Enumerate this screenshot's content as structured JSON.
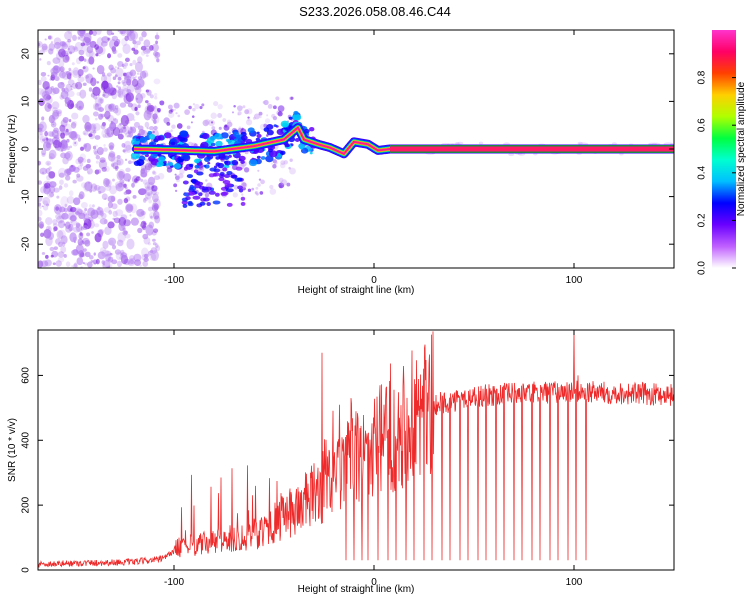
{
  "title": "S233.2026.058.08.46.C44",
  "colors": {
    "snr_line": "#ee2a2a",
    "axis": "#000000",
    "cloud": "#a05ce0"
  },
  "chart_data": [
    {
      "type": "heatmap",
      "title": "S233.2026.058.08.46.C44",
      "xlabel": "Height of straight line (km)",
      "ylabel": "Frequency (Hz)",
      "xlim": [
        -168,
        150
      ],
      "ylim": [
        -25,
        25
      ],
      "xticks": [
        -100,
        0,
        100
      ],
      "xtick_labels": [
        "-100",
        "0",
        "100"
      ],
      "yticks": [
        -20,
        -10,
        0,
        10,
        20
      ],
      "ytick_labels": [
        "-20",
        "-10",
        "0",
        "10",
        "20"
      ],
      "colorbar": {
        "label": "Normalized spectral amplitude",
        "range": [
          0,
          1
        ],
        "ticks": [
          0.0,
          0.2,
          0.4,
          0.6,
          0.8
        ],
        "tick_labels": [
          "0.0",
          "0.2",
          "0.4",
          "0.6",
          "0.8"
        ],
        "colormap": [
          "#ffffff",
          "#c060ff",
          "#6a00ff",
          "#0000ff",
          "#00bfff",
          "#00ffd0",
          "#00ff40",
          "#b0ff00",
          "#ffd000",
          "#ff4000",
          "#ff0066",
          "#ff33cc"
        ]
      },
      "ridge": [
        {
          "x": -120,
          "f": 0.0
        },
        {
          "x": -100,
          "f": -0.2
        },
        {
          "x": -80,
          "f": -0.5
        },
        {
          "x": -60,
          "f": 0.6
        },
        {
          "x": -45,
          "f": 2.0
        },
        {
          "x": -38,
          "f": 4.5
        },
        {
          "x": -35,
          "f": 2.0
        },
        {
          "x": -28,
          "f": 1.0
        },
        {
          "x": -22,
          "f": 0.3
        },
        {
          "x": -15,
          "f": -1.0
        },
        {
          "x": -10,
          "f": 1.5
        },
        {
          "x": -3,
          "f": 1.0
        },
        {
          "x": 2,
          "f": -0.3
        },
        {
          "x": 8,
          "f": 0.0
        },
        {
          "x": 150,
          "f": 0.0
        }
      ]
    },
    {
      "type": "line",
      "xlabel": "Height of straight line (km)",
      "ylabel": "SNR (10 * v/v)",
      "xlim": [
        -168,
        150
      ],
      "ylim": [
        0,
        740
      ],
      "xticks": [
        -100,
        0,
        100
      ],
      "xtick_labels": [
        "-100",
        "0",
        "100"
      ],
      "yticks": [
        0,
        200,
        400,
        600
      ],
      "ytick_labels": [
        "0",
        "200",
        "400",
        "600"
      ],
      "series": [
        {
          "name": "SNR",
          "envelope": [
            {
              "x": -168,
              "y": 18
            },
            {
              "x": -120,
              "y": 25
            },
            {
              "x": -105,
              "y": 35
            },
            {
              "x": -98,
              "y": 70
            },
            {
              "x": -80,
              "y": 85
            },
            {
              "x": -60,
              "y": 110
            },
            {
              "x": -45,
              "y": 160
            },
            {
              "x": -30,
              "y": 230
            },
            {
              "x": -15,
              "y": 310
            },
            {
              "x": 0,
              "y": 380
            },
            {
              "x": 15,
              "y": 460
            },
            {
              "x": 30,
              "y": 510
            },
            {
              "x": 50,
              "y": 535
            },
            {
              "x": 70,
              "y": 545
            },
            {
              "x": 100,
              "y": 550
            },
            {
              "x": 150,
              "y": 540
            }
          ],
          "spikes": [
            {
              "x": -26,
              "y": 670
            },
            {
              "x": -12,
              "y": 430
            },
            {
              "x": 100,
              "y": 740
            },
            {
              "x": 102,
              "y": 600
            }
          ],
          "dropouts_x": [
            -14,
            -10,
            -6,
            -3,
            2,
            7,
            11,
            16,
            20,
            25,
            29,
            34,
            38,
            43,
            47,
            52,
            56,
            61,
            65,
            70,
            74,
            79,
            83,
            88,
            92,
            97,
            101,
            106
          ]
        }
      ]
    }
  ]
}
